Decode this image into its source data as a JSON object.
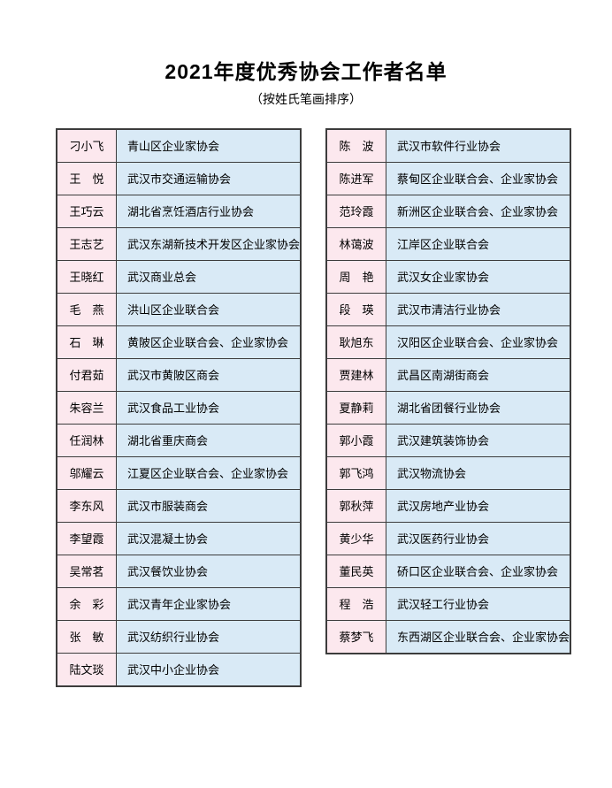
{
  "page": {
    "title": "2021年度优秀协会工作者名单",
    "subtitle": "（按姓氏笔画排序）"
  },
  "colors": {
    "name_cell_bg": "#fce8ee",
    "org_cell_bg": "#d9eaf6",
    "border": "#3c3c3c"
  },
  "left_table": {
    "rows": [
      {
        "name": "刁小飞",
        "org": "青山区企业家协会"
      },
      {
        "name": "王　悦",
        "org": "武汉市交通运输协会"
      },
      {
        "name": "王巧云",
        "org": "湖北省烹饪酒店行业协会"
      },
      {
        "name": "王志艺",
        "org": "武汉东湖新技术开发区企业家协会"
      },
      {
        "name": "王晓红",
        "org": "武汉商业总会"
      },
      {
        "name": "毛　燕",
        "org": "洪山区企业联合会"
      },
      {
        "name": "石　琳",
        "org": "黄陂区企业联合会、企业家协会"
      },
      {
        "name": "付君茹",
        "org": "武汉市黄陂区商会"
      },
      {
        "name": "朱容兰",
        "org": "武汉食品工业协会"
      },
      {
        "name": "任润林",
        "org": "湖北省重庆商会"
      },
      {
        "name": "邬耀云",
        "org": "江夏区企业联合会、企业家协会"
      },
      {
        "name": "李东风",
        "org": "武汉市服装商会"
      },
      {
        "name": "李望霞",
        "org": "武汉混凝土协会"
      },
      {
        "name": "吴常茗",
        "org": "武汉餐饮业协会"
      },
      {
        "name": "余　彩",
        "org": "武汉青年企业家协会"
      },
      {
        "name": "张　敏",
        "org": "武汉纺织行业协会"
      },
      {
        "name": "陆文琰",
        "org": "武汉中小企业协会"
      }
    ]
  },
  "right_table": {
    "rows": [
      {
        "name": "陈　波",
        "org": "武汉市软件行业协会"
      },
      {
        "name": "陈进军",
        "org": "蔡甸区企业联合会、企业家协会"
      },
      {
        "name": "范玲霞",
        "org": "新洲区企业联合会、企业家协会"
      },
      {
        "name": "林蔼波",
        "org": "江岸区企业联合会"
      },
      {
        "name": "周　艳",
        "org": "武汉女企业家协会"
      },
      {
        "name": "段　瑛",
        "org": "武汉市清洁行业协会"
      },
      {
        "name": "耿旭东",
        "org": "汉阳区企业联合会、企业家协会"
      },
      {
        "name": "贾建林",
        "org": "武昌区南湖街商会"
      },
      {
        "name": "夏静莉",
        "org": "湖北省团餐行业协会"
      },
      {
        "name": "郭小霞",
        "org": "武汉建筑装饰协会"
      },
      {
        "name": "郭飞鸿",
        "org": "武汉物流协会"
      },
      {
        "name": "郭秋萍",
        "org": "武汉房地产业协会"
      },
      {
        "name": "黄少华",
        "org": "武汉医药行业协会"
      },
      {
        "name": "董民英",
        "org": "硚口区企业联合会、企业家协会"
      },
      {
        "name": "程　浩",
        "org": "武汉轻工行业协会"
      },
      {
        "name": "蔡梦飞",
        "org": "东西湖区企业联合会、企业家协会"
      }
    ]
  }
}
